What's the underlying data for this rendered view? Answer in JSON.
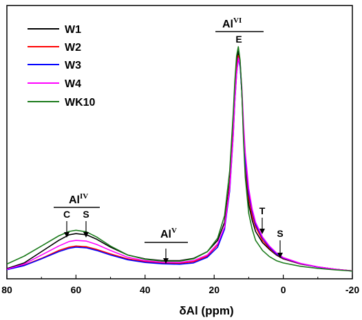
{
  "chart_data": {
    "type": "line",
    "title": "",
    "xlabel": "δAl (ppm)",
    "ylabel": "",
    "xlim": [
      80,
      -20
    ],
    "x_reversed": true,
    "x_ticks": [
      "80",
      "60",
      "40",
      "20",
      "0",
      "-20"
    ],
    "y_ticks_shown": false,
    "legend_position": "top-left",
    "series": [
      {
        "name": "W1",
        "color": "#000000",
        "points": [
          [
            80,
            0.015
          ],
          [
            75,
            0.04
          ],
          [
            70,
            0.09
          ],
          [
            65,
            0.14
          ],
          [
            62,
            0.165
          ],
          [
            60,
            0.17
          ],
          [
            57,
            0.165
          ],
          [
            54,
            0.145
          ],
          [
            50,
            0.11
          ],
          [
            45,
            0.075
          ],
          [
            40,
            0.058
          ],
          [
            35,
            0.05
          ],
          [
            30,
            0.05
          ],
          [
            26,
            0.06
          ],
          [
            22,
            0.09
          ],
          [
            19,
            0.14
          ],
          [
            17,
            0.22
          ],
          [
            15.5,
            0.4
          ],
          [
            14.5,
            0.65
          ],
          [
            14,
            0.8
          ],
          [
            13.5,
            0.93
          ],
          [
            13,
            0.98
          ],
          [
            12.5,
            0.93
          ],
          [
            12,
            0.8
          ],
          [
            11.5,
            0.6
          ],
          [
            11,
            0.45
          ],
          [
            10,
            0.3
          ],
          [
            9,
            0.23
          ],
          [
            8,
            0.18
          ],
          [
            6,
            0.13
          ],
          [
            4,
            0.1
          ],
          [
            2,
            0.075
          ],
          [
            0,
            0.058
          ],
          [
            -5,
            0.035
          ],
          [
            -10,
            0.022
          ],
          [
            -15,
            0.012
          ],
          [
            -20,
            0.005
          ]
        ]
      },
      {
        "name": "W2",
        "color": "#ff0000",
        "points": [
          [
            80,
            0.012
          ],
          [
            75,
            0.03
          ],
          [
            70,
            0.06
          ],
          [
            65,
            0.095
          ],
          [
            62,
            0.11
          ],
          [
            60,
            0.115
          ],
          [
            57,
            0.112
          ],
          [
            54,
            0.1
          ],
          [
            50,
            0.08
          ],
          [
            45,
            0.058
          ],
          [
            40,
            0.046
          ],
          [
            35,
            0.04
          ],
          [
            30,
            0.038
          ],
          [
            26,
            0.045
          ],
          [
            22,
            0.07
          ],
          [
            19,
            0.12
          ],
          [
            17,
            0.2
          ],
          [
            15.5,
            0.38
          ],
          [
            14.5,
            0.62
          ],
          [
            14,
            0.78
          ],
          [
            13.5,
            0.9
          ],
          [
            13,
            0.96
          ],
          [
            12.5,
            0.92
          ],
          [
            12,
            0.8
          ],
          [
            11.5,
            0.62
          ],
          [
            11,
            0.48
          ],
          [
            10,
            0.33
          ],
          [
            9,
            0.25
          ],
          [
            8,
            0.2
          ],
          [
            6,
            0.14
          ],
          [
            4,
            0.105
          ],
          [
            2,
            0.078
          ],
          [
            0,
            0.06
          ],
          [
            -5,
            0.036
          ],
          [
            -10,
            0.022
          ],
          [
            -15,
            0.012
          ],
          [
            -20,
            0.005
          ]
        ]
      },
      {
        "name": "W3",
        "color": "#0000ff",
        "points": [
          [
            80,
            0.01
          ],
          [
            75,
            0.028
          ],
          [
            70,
            0.058
          ],
          [
            65,
            0.09
          ],
          [
            62,
            0.105
          ],
          [
            60,
            0.11
          ],
          [
            57,
            0.107
          ],
          [
            54,
            0.095
          ],
          [
            50,
            0.075
          ],
          [
            45,
            0.054
          ],
          [
            40,
            0.042
          ],
          [
            35,
            0.036
          ],
          [
            30,
            0.034
          ],
          [
            26,
            0.04
          ],
          [
            22,
            0.065
          ],
          [
            19,
            0.11
          ],
          [
            17,
            0.19
          ],
          [
            15.5,
            0.36
          ],
          [
            14.5,
            0.6
          ],
          [
            14,
            0.76
          ],
          [
            13.5,
            0.88
          ],
          [
            13,
            0.95
          ],
          [
            12.5,
            0.91
          ],
          [
            12,
            0.8
          ],
          [
            11.5,
            0.63
          ],
          [
            11,
            0.5
          ],
          [
            10,
            0.35
          ],
          [
            9,
            0.27
          ],
          [
            8,
            0.21
          ],
          [
            6,
            0.15
          ],
          [
            4,
            0.11
          ],
          [
            2,
            0.08
          ],
          [
            0,
            0.062
          ],
          [
            -5,
            0.037
          ],
          [
            -10,
            0.022
          ],
          [
            -15,
            0.012
          ],
          [
            -20,
            0.004
          ]
        ]
      },
      {
        "name": "W4",
        "color": "#ff00ff",
        "points": [
          [
            80,
            0.012
          ],
          [
            75,
            0.035
          ],
          [
            70,
            0.075
          ],
          [
            65,
            0.115
          ],
          [
            62,
            0.135
          ],
          [
            60,
            0.14
          ],
          [
            57,
            0.137
          ],
          [
            54,
            0.122
          ],
          [
            50,
            0.095
          ],
          [
            45,
            0.065
          ],
          [
            40,
            0.05
          ],
          [
            35,
            0.043
          ],
          [
            30,
            0.042
          ],
          [
            26,
            0.05
          ],
          [
            22,
            0.075
          ],
          [
            19,
            0.125
          ],
          [
            17,
            0.2
          ],
          [
            15.5,
            0.37
          ],
          [
            14.5,
            0.6
          ],
          [
            14,
            0.76
          ],
          [
            13.5,
            0.88
          ],
          [
            13,
            0.95
          ],
          [
            12.5,
            0.92
          ],
          [
            12,
            0.82
          ],
          [
            11.5,
            0.66
          ],
          [
            11,
            0.53
          ],
          [
            10,
            0.37
          ],
          [
            9,
            0.28
          ],
          [
            8,
            0.22
          ],
          [
            6,
            0.155
          ],
          [
            4,
            0.115
          ],
          [
            2,
            0.085
          ],
          [
            0,
            0.064
          ],
          [
            -5,
            0.038
          ],
          [
            -10,
            0.023
          ],
          [
            -15,
            0.012
          ],
          [
            -20,
            0.005
          ]
        ]
      },
      {
        "name": "WK10",
        "color": "#1a7a1a",
        "points": [
          [
            80,
            0.035
          ],
          [
            75,
            0.07
          ],
          [
            70,
            0.115
          ],
          [
            65,
            0.16
          ],
          [
            62,
            0.18
          ],
          [
            60,
            0.185
          ],
          [
            57,
            0.178
          ],
          [
            54,
            0.155
          ],
          [
            50,
            0.115
          ],
          [
            45,
            0.075
          ],
          [
            40,
            0.056
          ],
          [
            35,
            0.048
          ],
          [
            30,
            0.048
          ],
          [
            26,
            0.058
          ],
          [
            22,
            0.09
          ],
          [
            19,
            0.15
          ],
          [
            17,
            0.25
          ],
          [
            15.5,
            0.45
          ],
          [
            14.5,
            0.7
          ],
          [
            14,
            0.85
          ],
          [
            13.5,
            0.96
          ],
          [
            13,
            1.0
          ],
          [
            12.5,
            0.94
          ],
          [
            12,
            0.8
          ],
          [
            11.5,
            0.58
          ],
          [
            11,
            0.42
          ],
          [
            10,
            0.26
          ],
          [
            9,
            0.19
          ],
          [
            8,
            0.14
          ],
          [
            6,
            0.095
          ],
          [
            4,
            0.068
          ],
          [
            2,
            0.05
          ],
          [
            0,
            0.04
          ],
          [
            -5,
            0.025
          ],
          [
            -10,
            0.016
          ],
          [
            -15,
            0.009
          ],
          [
            -20,
            0.004
          ]
        ]
      }
    ],
    "annotations": {
      "al4": {
        "main": "Al",
        "sup": "IV",
        "x": 58,
        "markers": [
          {
            "label": "C",
            "x": 63
          },
          {
            "label": "S",
            "x": 58
          }
        ]
      },
      "al5": {
        "main": "Al",
        "sup": "V",
        "x": 34,
        "markers": [
          {
            "label": "",
            "x": 34
          }
        ]
      },
      "al6": {
        "main": "Al",
        "sup": "VI",
        "x": 13,
        "markers": [
          {
            "label": "E",
            "x": 13
          },
          {
            "label": "T",
            "x": 7
          },
          {
            "label": "S",
            "x": 1
          }
        ]
      }
    }
  }
}
